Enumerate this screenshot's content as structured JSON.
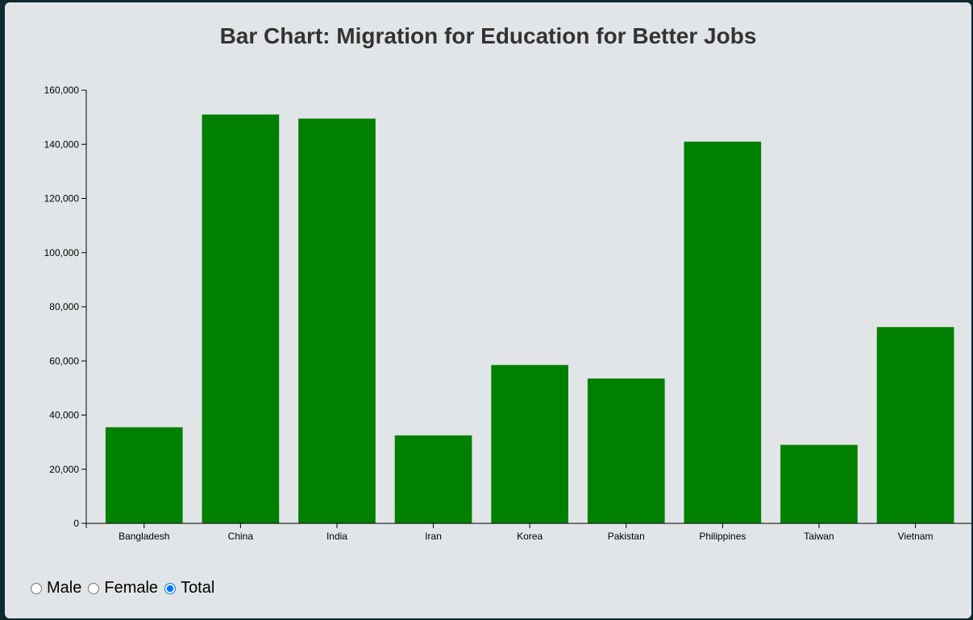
{
  "colors": {
    "bar": "#008000",
    "panel": "#e1e5e7",
    "background": "#0d2a30"
  },
  "controls": {
    "name": "gender",
    "options": [
      {
        "label": "Male",
        "value": "male",
        "checked": false
      },
      {
        "label": "Female",
        "value": "female",
        "checked": false
      },
      {
        "label": "Total",
        "value": "total",
        "checked": true
      }
    ]
  },
  "chart_data": {
    "type": "bar",
    "title": "Bar Chart: Migration for Education for Better Jobs",
    "xlabel": "",
    "ylabel": "",
    "categories": [
      "Bangladesh",
      "China",
      "India",
      "Iran",
      "Korea",
      "Pakistan",
      "Philippines",
      "Taiwan",
      "Vietnam"
    ],
    "values": [
      35500,
      151000,
      149500,
      32500,
      58500,
      53500,
      141000,
      29000,
      72500
    ],
    "ylim": [
      0,
      160000
    ],
    "yticks": [
      0,
      20000,
      40000,
      60000,
      80000,
      100000,
      120000,
      140000,
      160000
    ],
    "grid": false,
    "legend": "none"
  }
}
